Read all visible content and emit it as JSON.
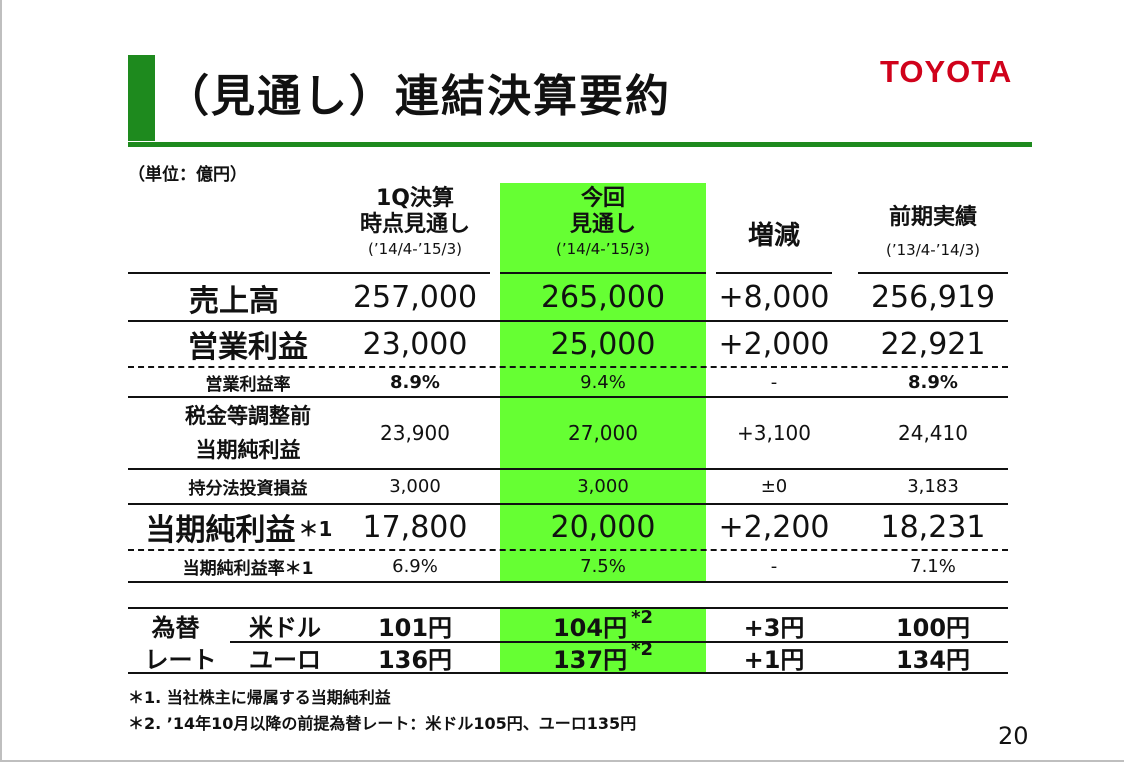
{
  "title": "（見通し）連結決算要約",
  "logo": "TOYOTA",
  "unit": "（単位：億円）",
  "columns": [
    {
      "line1": "1Q決算",
      "line2": "時点見通し",
      "period": "(’14/4-’15/3)"
    },
    {
      "line1": "今回",
      "line2": "見通し",
      "period": "(’14/4-’15/3)"
    },
    {
      "line1": "増減"
    },
    {
      "line1": "前期実績",
      "period": "(’13/4-’14/3)"
    }
  ],
  "rows": {
    "sales": {
      "label": "売上高",
      "values": [
        "257,000",
        "265,000",
        "+8,000",
        "256,919"
      ]
    },
    "op_income": {
      "label": "営業利益",
      "values": [
        "23,000",
        "25,000",
        "+2,000",
        "22,921"
      ]
    },
    "op_margin": {
      "label": "営業利益率",
      "values": [
        "8.9%",
        "9.4%",
        "-",
        "8.9%"
      ]
    },
    "pretax": {
      "label_line1": "税金等調整前",
      "label_line2": "当期純利益",
      "values": [
        "23,900",
        "27,000",
        "+3,100",
        "24,410"
      ]
    },
    "equity": {
      "label": "持分法投資損益",
      "values": [
        "3,000",
        "3,000",
        "±0",
        "3,183"
      ]
    },
    "net_income": {
      "label": "当期純利益",
      "label_suffix": "＊1",
      "values": [
        "17,800",
        "20,000",
        "+2,200",
        "18,231"
      ]
    },
    "net_margin": {
      "label": "当期純利益率＊1",
      "values": [
        "6.9%",
        "7.5%",
        "-",
        "7.1%"
      ]
    }
  },
  "fx": {
    "label_line1": "為替",
    "label_line2": "レート",
    "usd": {
      "label": "米ドル",
      "values": [
        "101円",
        "104円",
        "+3円",
        "100円"
      ],
      "note": "*2"
    },
    "eur": {
      "label": "ユーロ",
      "values": [
        "136円",
        "137円",
        "+1円",
        "134円"
      ],
      "note": "*2"
    }
  },
  "footnotes": [
    "＊1. 当社株主に帰属する当期純利益",
    "＊2. ’14年10月以降の前提為替レート：米ドル105円、ユーロ135円"
  ],
  "page_number": "20",
  "colors": {
    "accent_green": "#1e8a1e",
    "highlight_green": "#66ff33",
    "logo_red": "#d0021b"
  }
}
